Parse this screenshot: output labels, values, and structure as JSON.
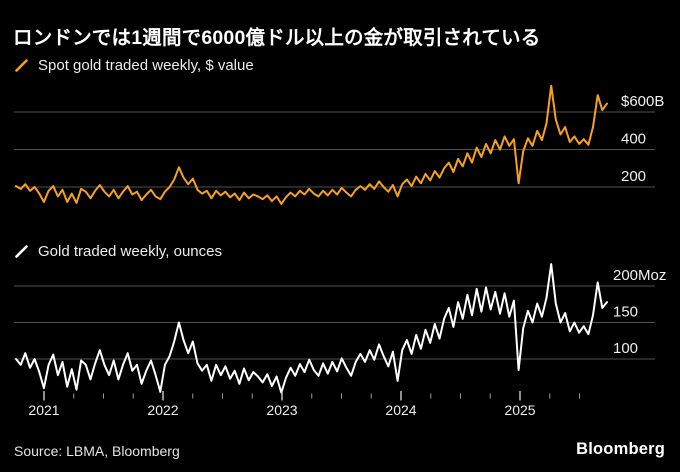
{
  "header": {
    "title": "ロンドンでは1週間で6000億ドル以上の金が取引されている"
  },
  "footer": {
    "source": "Source: LBMA, Bloomberg",
    "logo": "Bloomberg"
  },
  "colors": {
    "background": "#000000",
    "grid": "#505050",
    "tick_minor": "#9a9a9a",
    "tick_major": "#dddddd",
    "axis_label": "#f0f0f0",
    "accent_orange": "#F7A11E",
    "series_white": "#FFFFFF"
  },
  "x_axis": {
    "year_labels": [
      "2021",
      "2022",
      "2023",
      "2024",
      "2025"
    ],
    "minor_ticks_per_year": 4,
    "x_range_years": [
      2020.77,
      2025.73
    ]
  },
  "chart_data": [
    {
      "type": "line",
      "legend": "Spot gold traded weekly, $ value",
      "unit": "$B",
      "color": "#F7A11E",
      "ylim": [
        100,
        800
      ],
      "grid": true,
      "legend_position": "top-left",
      "yticks": [
        {
          "value": 600,
          "label": "$600B"
        },
        {
          "value": 400,
          "label": "400"
        },
        {
          "value": 200,
          "label": "200"
        }
      ],
      "x_start_year": 2020.77,
      "x_end_year": 2025.73,
      "sampling": "weekly series, ~2-week samples",
      "values": [
        205,
        190,
        215,
        180,
        200,
        165,
        120,
        180,
        205,
        150,
        185,
        120,
        165,
        115,
        190,
        175,
        140,
        180,
        210,
        175,
        150,
        185,
        140,
        175,
        205,
        160,
        175,
        130,
        160,
        185,
        150,
        135,
        175,
        200,
        240,
        305,
        250,
        215,
        245,
        185,
        165,
        180,
        140,
        180,
        155,
        175,
        145,
        165,
        130,
        170,
        140,
        160,
        150,
        135,
        155,
        125,
        150,
        110,
        145,
        170,
        150,
        180,
        160,
        190,
        165,
        150,
        180,
        155,
        185,
        160,
        195,
        170,
        150,
        185,
        205,
        185,
        215,
        190,
        230,
        200,
        175,
        210,
        150,
        215,
        240,
        205,
        255,
        220,
        270,
        235,
        285,
        250,
        300,
        330,
        280,
        350,
        310,
        380,
        330,
        410,
        360,
        430,
        380,
        450,
        400,
        470,
        420,
        455,
        220,
        390,
        460,
        420,
        500,
        450,
        540,
        740,
        560,
        480,
        520,
        440,
        470,
        430,
        455,
        425,
        520,
        690,
        610,
        645
      ]
    },
    {
      "type": "line",
      "legend": "Gold traded weekly, ounces",
      "unit": "Moz",
      "color": "#FFFFFF",
      "ylim": [
        40,
        240
      ],
      "grid": true,
      "legend_position": "top-left",
      "yticks": [
        {
          "value": 200,
          "label": "200Moz"
        },
        {
          "value": 150,
          "label": "150"
        },
        {
          "value": 100,
          "label": "100"
        }
      ],
      "x_start_year": 2020.77,
      "x_end_year": 2025.73,
      "sampling": "weekly series, ~2-week samples",
      "values": [
        100,
        92,
        108,
        88,
        100,
        82,
        60,
        92,
        106,
        78,
        96,
        62,
        86,
        58,
        98,
        92,
        72,
        94,
        112,
        92,
        78,
        98,
        72,
        92,
        108,
        84,
        92,
        66,
        84,
        98,
        78,
        55,
        92,
        104,
        124,
        150,
        126,
        108,
        124,
        94,
        84,
        92,
        70,
        92,
        78,
        90,
        73,
        84,
        66,
        87,
        71,
        82,
        76,
        68,
        79,
        63,
        76,
        54,
        74,
        88,
        77,
        93,
        82,
        99,
        85,
        77,
        94,
        80,
        96,
        83,
        101,
        88,
        77,
        96,
        107,
        96,
        112,
        99,
        120,
        104,
        90,
        110,
        70,
        112,
        126,
        107,
        133,
        114,
        140,
        122,
        148,
        128,
        155,
        170,
        144,
        178,
        155,
        188,
        160,
        196,
        165,
        198,
        168,
        192,
        162,
        190,
        158,
        180,
        85,
        142,
        166,
        150,
        176,
        158,
        184,
        230,
        176,
        150,
        163,
        138,
        150,
        136,
        145,
        134,
        160,
        205,
        170,
        178
      ]
    }
  ]
}
